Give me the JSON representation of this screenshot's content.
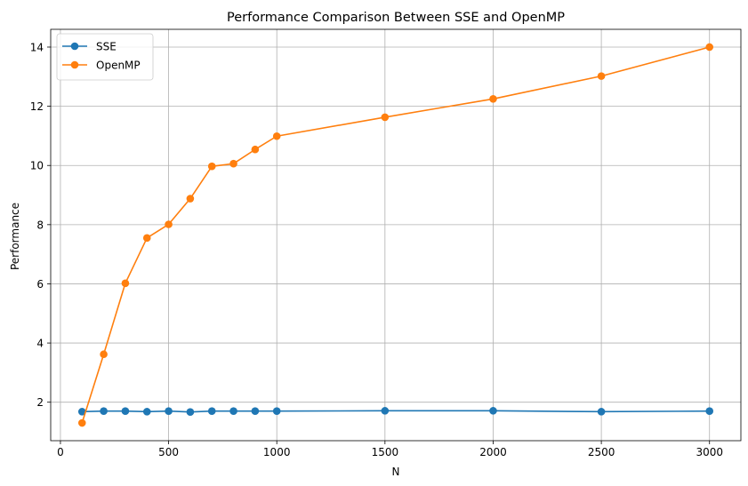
{
  "chart_data": {
    "type": "line",
    "title": "Performance Comparison Between SSE and OpenMP",
    "xlabel": "N",
    "ylabel": "Performance",
    "x": [
      100,
      200,
      300,
      400,
      500,
      600,
      700,
      800,
      900,
      1000,
      1500,
      2000,
      2500,
      3000
    ],
    "xlim": [
      -45,
      3145
    ],
    "ylim": [
      0.7,
      14.6
    ],
    "xticks": [
      0,
      500,
      1000,
      1500,
      2000,
      2500,
      3000
    ],
    "yticks": [
      2,
      4,
      6,
      8,
      10,
      12,
      14
    ],
    "grid": true,
    "legend_position": "top-left",
    "markers": "circle",
    "series": [
      {
        "name": "SSE",
        "color": "#1f77b4",
        "values": [
          1.68,
          1.7,
          1.7,
          1.68,
          1.7,
          1.67,
          1.7,
          1.7,
          1.7,
          1.7,
          1.71,
          1.71,
          1.68,
          1.7
        ]
      },
      {
        "name": "OpenMP",
        "color": "#ff7f0e",
        "values": [
          1.3,
          3.62,
          6.02,
          7.55,
          8.01,
          8.88,
          9.97,
          10.06,
          10.54,
          10.99,
          11.63,
          12.25,
          13.02,
          14.0
        ]
      }
    ]
  }
}
